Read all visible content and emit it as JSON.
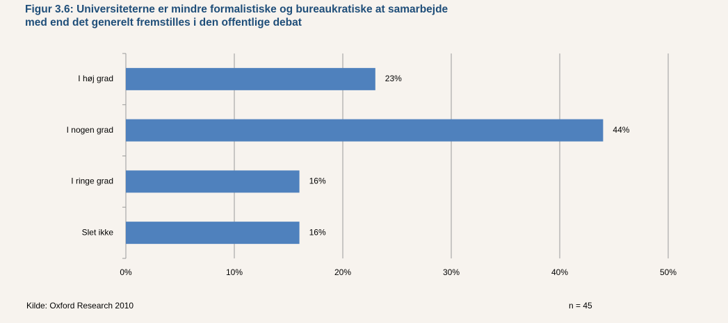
{
  "chart_data": {
    "type": "bar",
    "orientation": "horizontal",
    "title": "Figur 3.6: Universiteterne er mindre formalistiske og bureaukratiske at samarbejde\nmed end det generelt fremstilles i den offentlige debat",
    "categories": [
      "I høj grad",
      "I nogen grad",
      "I ringe grad",
      "Slet ikke"
    ],
    "values": [
      23,
      44,
      16,
      16
    ],
    "value_labels": [
      "23%",
      "44%",
      "16%",
      "16%"
    ],
    "color": "#4f81bd",
    "xlim": [
      0,
      50
    ],
    "xticks": [
      {
        "value": 0,
        "label": "0%"
      },
      {
        "value": 10,
        "label": "10%"
      },
      {
        "value": 20,
        "label": "20%"
      },
      {
        "value": 30,
        "label": "30%"
      },
      {
        "value": 40,
        "label": "40%"
      },
      {
        "value": 50,
        "label": "50%"
      }
    ],
    "grid": true,
    "annotations": [
      "Kilde: Oxford Research 2010",
      "n = 45"
    ]
  }
}
